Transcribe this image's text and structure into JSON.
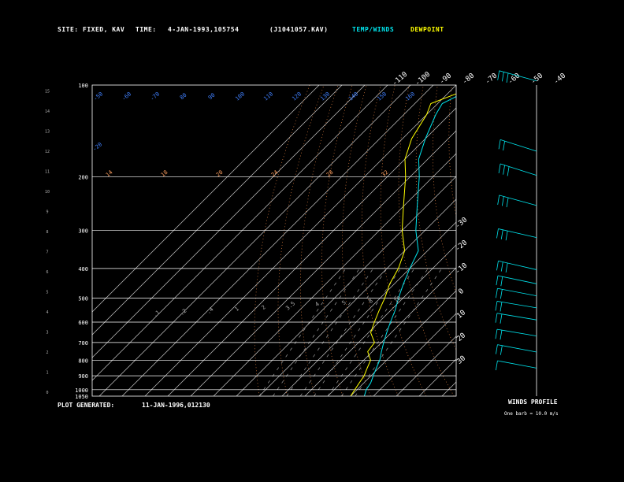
{
  "header": {
    "site_label": "SITE:",
    "site_value": "FIXED, KAV",
    "time_label": "TIME:",
    "time_value": "4-JAN-1993,105754",
    "file_id": "(J1041057.KAV)",
    "legend_temp": "TEMP/WINDS",
    "legend_dew": "DEWPOINT"
  },
  "footer": {
    "generated_label": "PLOT GENERATED:",
    "generated_value": "11-JAN-1996,012130",
    "winds_title": "WINDS PROFILE",
    "winds_note": "One barb = 10.0 m/s"
  },
  "colors": {
    "background": "#000000",
    "frame": "#ffffff",
    "isotherm": "#c8c8c8",
    "temp": "#00e5ee",
    "dewpoint": "#ffff00",
    "dry_adiabat": "#e08040",
    "moist_adiabat": "#c8a0a0",
    "mixing_ratio": "#a0a0a0",
    "mixing_label": "#ffa060",
    "blue_label": "#4080ff",
    "wind": "#00e5ee"
  },
  "chart_data": {
    "type": "skew-t",
    "pressure_levels": [
      100,
      200,
      300,
      400,
      500,
      600,
      700,
      800,
      900,
      1000,
      1050
    ],
    "pressure_labels": [
      "100",
      "200",
      "300",
      "400",
      "500",
      "600",
      "700",
      "800",
      "900",
      "1000",
      "1050"
    ],
    "height_km": [
      0,
      1,
      2,
      3,
      4,
      5,
      6,
      7,
      8,
      9,
      10,
      11,
      12,
      13,
      14,
      15
    ],
    "isotherm_top_labels": [
      "-110",
      "-100",
      "-90",
      "-80",
      "-70",
      "-60",
      "-50",
      "-40"
    ],
    "isotherm_right_labels": [
      "-30",
      "-20",
      "-10",
      "0",
      "10",
      "20",
      "30"
    ],
    "temp_profile_pressure": [
      100,
      115,
      125,
      150,
      175,
      200,
      250,
      300,
      350,
      400,
      450,
      500,
      550,
      600,
      650,
      700,
      750,
      800,
      850,
      900,
      950,
      1000,
      1050
    ],
    "temp_profile_celsius": [
      -80,
      -88,
      -86,
      -80,
      -74,
      -66,
      -54,
      -44,
      -34,
      -30,
      -26,
      -22,
      -18,
      -15,
      -12,
      -9,
      -6,
      -3,
      -1,
      1,
      3,
      4,
      6
    ],
    "dewpoint_profile_celsius": [
      -80,
      -93,
      -90,
      -86,
      -80,
      -72,
      -60,
      -50,
      -40,
      -35,
      -32,
      -28,
      -25,
      -22,
      -19,
      -13,
      -12,
      -7,
      -5,
      -3,
      -2,
      -1,
      0
    ],
    "mixing_ratio_labels": [
      ".1",
      ".2",
      ".4",
      "1",
      "2",
      "3.5",
      "4",
      "5",
      "8",
      "10"
    ],
    "moist_adiabat_labels": [
      "14",
      "18",
      "20",
      "24",
      "28",
      "32"
    ],
    "blue_side_labels": [
      "-20",
      "-50",
      "-60",
      "-70",
      "80",
      "90",
      "100",
      "110",
      "120",
      "130",
      "140",
      "150",
      "160"
    ],
    "winds": [
      {
        "height_km": 15.5,
        "speed_ms": 60,
        "dir_deg": 250
      },
      {
        "height_km": 12.0,
        "speed_ms": 20,
        "dir_deg": 260
      },
      {
        "height_km": 10.8,
        "speed_ms": 30,
        "dir_deg": 260
      },
      {
        "height_km": 9.3,
        "speed_ms": 30,
        "dir_deg": 250
      },
      {
        "height_km": 7.7,
        "speed_ms": 30,
        "dir_deg": 240
      },
      {
        "height_km": 6.1,
        "speed_ms": 30,
        "dir_deg": 240
      },
      {
        "height_km": 5.4,
        "speed_ms": 20,
        "dir_deg": 235
      },
      {
        "height_km": 4.8,
        "speed_ms": 20,
        "dir_deg": 230
      },
      {
        "height_km": 4.2,
        "speed_ms": 20,
        "dir_deg": 225
      },
      {
        "height_km": 3.6,
        "speed_ms": 20,
        "dir_deg": 225
      },
      {
        "height_km": 2.8,
        "speed_ms": 20,
        "dir_deg": 225
      },
      {
        "height_km": 2.0,
        "speed_ms": 15,
        "dir_deg": 230
      },
      {
        "height_km": 1.2,
        "speed_ms": 10,
        "dir_deg": 230
      }
    ]
  }
}
